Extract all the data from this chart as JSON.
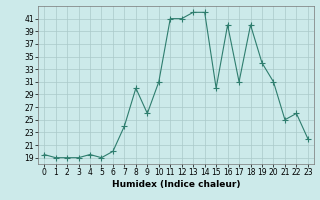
{
  "x": [
    0,
    1,
    2,
    3,
    4,
    5,
    6,
    7,
    8,
    9,
    10,
    11,
    12,
    13,
    14,
    15,
    16,
    17,
    18,
    19,
    20,
    21,
    22,
    23
  ],
  "y": [
    19.5,
    19,
    19,
    19,
    19.5,
    19,
    20,
    24,
    30,
    26,
    31,
    41,
    41,
    42,
    42,
    30,
    40,
    31,
    40,
    34,
    31,
    25,
    26,
    22
  ],
  "line_color": "#2e7d6e",
  "marker": "+",
  "marker_size": 4,
  "linewidth": 0.8,
  "markeredgewidth": 0.8,
  "xlabel": "Humidex (Indice chaleur)",
  "ylim": [
    18,
    43
  ],
  "xlim": [
    -0.5,
    23.5
  ],
  "yticks": [
    19,
    21,
    23,
    25,
    27,
    29,
    31,
    33,
    35,
    37,
    39,
    41
  ],
  "xticks": [
    0,
    1,
    2,
    3,
    4,
    5,
    6,
    7,
    8,
    9,
    10,
    11,
    12,
    13,
    14,
    15,
    16,
    17,
    18,
    19,
    20,
    21,
    22,
    23
  ],
  "bg_color": "#cceaea",
  "grid_color": "#aacaca",
  "tick_fontsize": 5.5,
  "xlabel_fontsize": 6.5,
  "xlabel_fontweight": "bold"
}
